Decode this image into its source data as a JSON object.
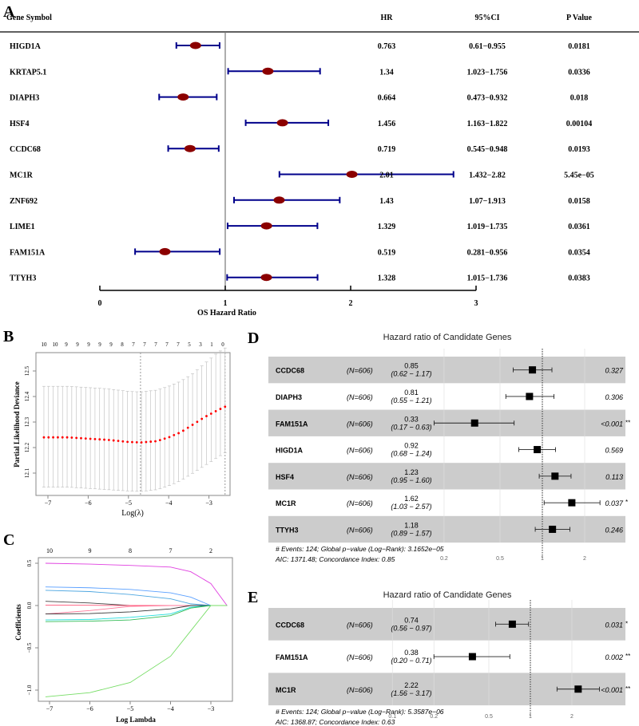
{
  "panels": {
    "A": "A",
    "B": "B",
    "C": "C",
    "D": "D",
    "E": "E"
  },
  "chart_data": [
    {
      "panel": "A",
      "type": "forest",
      "headers": {
        "gene": "Gene Symbol",
        "hr": "HR",
        "ci": "95%CI",
        "p": "P Value"
      },
      "xlabel": "OS Hazard Ratio",
      "xlim": [
        0,
        3
      ],
      "xticks": [
        "0",
        "1",
        "2",
        "3"
      ],
      "reference_line": 1,
      "colors": {
        "point": "#8b0000",
        "ci": "#00008b"
      },
      "rows": [
        {
          "gene": "HIGD1A",
          "hr": 0.763,
          "low": 0.61,
          "high": 0.955,
          "hr_text": "0.763",
          "ci_text": "0.61−0.955",
          "p": "0.0181"
        },
        {
          "gene": "KRTAP5.1",
          "hr": 1.34,
          "low": 1.023,
          "high": 1.756,
          "hr_text": "1.34",
          "ci_text": "1.023−1.756",
          "p": "0.0336"
        },
        {
          "gene": "DIAPH3",
          "hr": 0.664,
          "low": 0.473,
          "high": 0.932,
          "hr_text": "0.664",
          "ci_text": "0.473−0.932",
          "p": "0.018"
        },
        {
          "gene": "HSF4",
          "hr": 1.456,
          "low": 1.163,
          "high": 1.822,
          "hr_text": "1.456",
          "ci_text": "1.163−1.822",
          "p": "0.00104"
        },
        {
          "gene": "CCDC68",
          "hr": 0.719,
          "low": 0.545,
          "high": 0.948,
          "hr_text": "0.719",
          "ci_text": "0.545−0.948",
          "p": "0.0193"
        },
        {
          "gene": "MC1R",
          "hr": 2.01,
          "low": 1.432,
          "high": 2.82,
          "hr_text": "2.01",
          "ci_text": "1.432−2.82",
          "p": "5.45e−05"
        },
        {
          "gene": "ZNF692",
          "hr": 1.43,
          "low": 1.07,
          "high": 1.913,
          "hr_text": "1.43",
          "ci_text": "1.07−1.913",
          "p": "0.0158"
        },
        {
          "gene": "LIME1",
          "hr": 1.329,
          "low": 1.019,
          "high": 1.735,
          "hr_text": "1.329",
          "ci_text": "1.019−1.735",
          "p": "0.0361"
        },
        {
          "gene": "FAM151A",
          "hr": 0.519,
          "low": 0.281,
          "high": 0.956,
          "hr_text": "0.519",
          "ci_text": "0.281−0.956",
          "p": "0.0354"
        },
        {
          "gene": "TTYH3",
          "hr": 1.328,
          "low": 1.015,
          "high": 1.736,
          "hr_text": "1.328",
          "ci_text": "1.015−1.736",
          "p": "0.0383"
        }
      ]
    },
    {
      "panel": "B",
      "type": "line",
      "xlabel": "Log(λ)",
      "ylabel": "Partial Likelihood Deviance",
      "xticks": [
        -7,
        -6,
        -5,
        -4,
        -3
      ],
      "xtick_labels": [
        "−7",
        "−6",
        "−5",
        "−4",
        "−3"
      ],
      "yticks": [
        12.1,
        12.2,
        12.3,
        12.4,
        12.5
      ],
      "ytick_labels": [
        "12.1",
        "12.2",
        "12.3",
        "12.4",
        "12.5"
      ],
      "top_labels": [
        "10",
        "10",
        "9",
        "9",
        "9",
        "9",
        "9",
        "8",
        "7",
        "7",
        "7",
        "7",
        "7",
        "5",
        "3",
        "1",
        "0"
      ],
      "vlines": [
        -4.7,
        -2.6
      ],
      "loglambda": [
        -7.1,
        -6.5,
        -6,
        -5.5,
        -5,
        -4.7,
        -4.3,
        -4,
        -3.7,
        -3.4,
        -3.1,
        -2.8,
        -2.6
      ],
      "mean": [
        12.24,
        12.24,
        12.235,
        12.23,
        12.222,
        12.22,
        12.225,
        12.24,
        12.26,
        12.29,
        12.32,
        12.345,
        12.36
      ],
      "upper": [
        12.44,
        12.44,
        12.435,
        12.43,
        12.42,
        12.418,
        12.425,
        12.44,
        12.46,
        12.49,
        12.53,
        12.57,
        12.59
      ],
      "lower": [
        12.045,
        12.045,
        12.04,
        12.035,
        12.03,
        12.028,
        12.035,
        12.05,
        12.07,
        12.1,
        12.13,
        12.16,
        12.18
      ],
      "colors": {
        "mean": "#ff0000",
        "bars": "#bbbbbb"
      }
    },
    {
      "panel": "C",
      "type": "line",
      "xlabel": "Log Lambda",
      "ylabel": "Coefficients",
      "xticks": [
        -7,
        -6,
        -5,
        -4,
        -3
      ],
      "xtick_labels": [
        "−7",
        "−6",
        "−5",
        "−4",
        "−3"
      ],
      "yticks": [
        0.5,
        0,
        -0.5,
        -1
      ],
      "ytick_labels": [
        "0.5",
        "0.0",
        "−0.5",
        "−1.0"
      ],
      "top_ticks": [
        -7,
        -6,
        -5,
        -4,
        -3
      ],
      "top_labels": [
        "10",
        "9",
        "8",
        "7",
        "2"
      ],
      "loglambda": [
        -7.1,
        -6,
        -5,
        -4,
        -3.5,
        -3,
        -2.6
      ],
      "series": [
        {
          "name": "coef1",
          "color": "#e040e0",
          "values": [
            0.5,
            0.49,
            0.475,
            0.455,
            0.4,
            0.26,
            0
          ]
        },
        {
          "name": "coef2",
          "color": "#5aa0ff",
          "values": [
            0.22,
            0.21,
            0.19,
            0.15,
            0.1,
            0.0,
            0
          ]
        },
        {
          "name": "coef3",
          "color": "#4da6e0",
          "values": [
            0.18,
            0.165,
            0.13,
            0.08,
            0.02,
            0,
            0
          ]
        },
        {
          "name": "coef4",
          "color": "#444444",
          "values": [
            0.05,
            0.03,
            0,
            0,
            0,
            0,
            0
          ]
        },
        {
          "name": "coef5",
          "color": "#ff5577",
          "values": [
            0.005,
            0.003,
            0,
            0,
            0,
            0,
            0
          ]
        },
        {
          "name": "coef6",
          "color": "#ff7799",
          "values": [
            -0.1,
            -0.06,
            -0.01,
            0,
            0,
            0,
            0
          ]
        },
        {
          "name": "coef7",
          "color": "#333333",
          "values": [
            -0.1,
            -0.095,
            -0.075,
            -0.04,
            0,
            0,
            0
          ]
        },
        {
          "name": "coef8",
          "color": "#22dddd",
          "values": [
            -0.17,
            -0.165,
            -0.14,
            -0.1,
            -0.02,
            0,
            0
          ]
        },
        {
          "name": "coef9",
          "color": "#33bb55",
          "values": [
            -0.19,
            -0.185,
            -0.17,
            -0.12,
            -0.03,
            0,
            0
          ]
        },
        {
          "name": "coef10",
          "color": "#77dd66",
          "values": [
            -1.08,
            -1.03,
            -0.91,
            -0.6,
            -0.3,
            0,
            0
          ]
        }
      ]
    },
    {
      "panel": "D",
      "type": "forest",
      "title": "Hazard ratio of Candidate Genes",
      "xticks": [
        0.2,
        0.5,
        1,
        2
      ],
      "xtick_labels": [
        "0.2",
        "0.5",
        "1",
        "2"
      ],
      "footer": [
        "# Events: 124; Global p−value (Log−Rank): 3.1652e−05",
        "AIC: 1371.48; Concordance Index: 0.85"
      ],
      "rows": [
        {
          "gene": "CCDC68",
          "n": "(N=606)",
          "hr": 0.85,
          "low": 0.62,
          "high": 1.17,
          "hr_text": "0.85",
          "ci_text": "(0.62 − 1.17)",
          "p": "0.327",
          "stars": ""
        },
        {
          "gene": "DIAPH3",
          "n": "(N=606)",
          "hr": 0.81,
          "low": 0.55,
          "high": 1.21,
          "hr_text": "0.81",
          "ci_text": "(0.55 − 1.21)",
          "p": "0.306",
          "stars": ""
        },
        {
          "gene": "FAM151A",
          "n": "(N=606)",
          "hr": 0.33,
          "low": 0.17,
          "high": 0.63,
          "hr_text": "0.33",
          "ci_text": "(0.17 − 0.63)",
          "p": "<0.001",
          "stars": "**"
        },
        {
          "gene": "HIGD1A",
          "n": "(N=606)",
          "hr": 0.92,
          "low": 0.68,
          "high": 1.24,
          "hr_text": "0.92",
          "ci_text": "(0.68 − 1.24)",
          "p": "0.569",
          "stars": ""
        },
        {
          "gene": "HSF4",
          "n": "(N=606)",
          "hr": 1.23,
          "low": 0.95,
          "high": 1.6,
          "hr_text": "1.23",
          "ci_text": "(0.95 − 1.60)",
          "p": "0.113",
          "stars": ""
        },
        {
          "gene": "MC1R",
          "n": "(N=606)",
          "hr": 1.62,
          "low": 1.03,
          "high": 2.57,
          "hr_text": "1.62",
          "ci_text": "(1.03 − 2.57)",
          "p": "0.037",
          "stars": "*"
        },
        {
          "gene": "TTYH3",
          "n": "(N=606)",
          "hr": 1.18,
          "low": 0.89,
          "high": 1.57,
          "hr_text": "1.18",
          "ci_text": "(0.89 − 1.57)",
          "p": "0.246",
          "stars": ""
        }
      ]
    },
    {
      "panel": "E",
      "type": "forest",
      "title": "Hazard ratio of Candidate Genes",
      "xticks": [
        0.1,
        0.2,
        0.5,
        1,
        2
      ],
      "xtick_labels": [
        "0.1",
        "0.2",
        "0.5",
        "1",
        "2"
      ],
      "footer": [
        "# Events: 124; Global p−value (Log−Rank): 5.3587e−06",
        "AIC: 1368.87; Concordance Index: 0.63"
      ],
      "rows": [
        {
          "gene": "CCDC68",
          "n": "(N=606)",
          "hr": 0.74,
          "low": 0.56,
          "high": 0.97,
          "hr_text": "0.74",
          "ci_text": "(0.56 − 0.97)",
          "p": "0.031",
          "stars": "*"
        },
        {
          "gene": "FAM151A",
          "n": "(N=606)",
          "hr": 0.38,
          "low": 0.2,
          "high": 0.71,
          "hr_text": "0.38",
          "ci_text": "(0.20 − 0.71)",
          "p": "0.002",
          "stars": "**"
        },
        {
          "gene": "MC1R",
          "n": "(N=606)",
          "hr": 2.22,
          "low": 1.56,
          "high": 3.17,
          "hr_text": "2.22",
          "ci_text": "(1.56 − 3.17)",
          "p": "<0.001",
          "stars": "**"
        }
      ]
    }
  ]
}
